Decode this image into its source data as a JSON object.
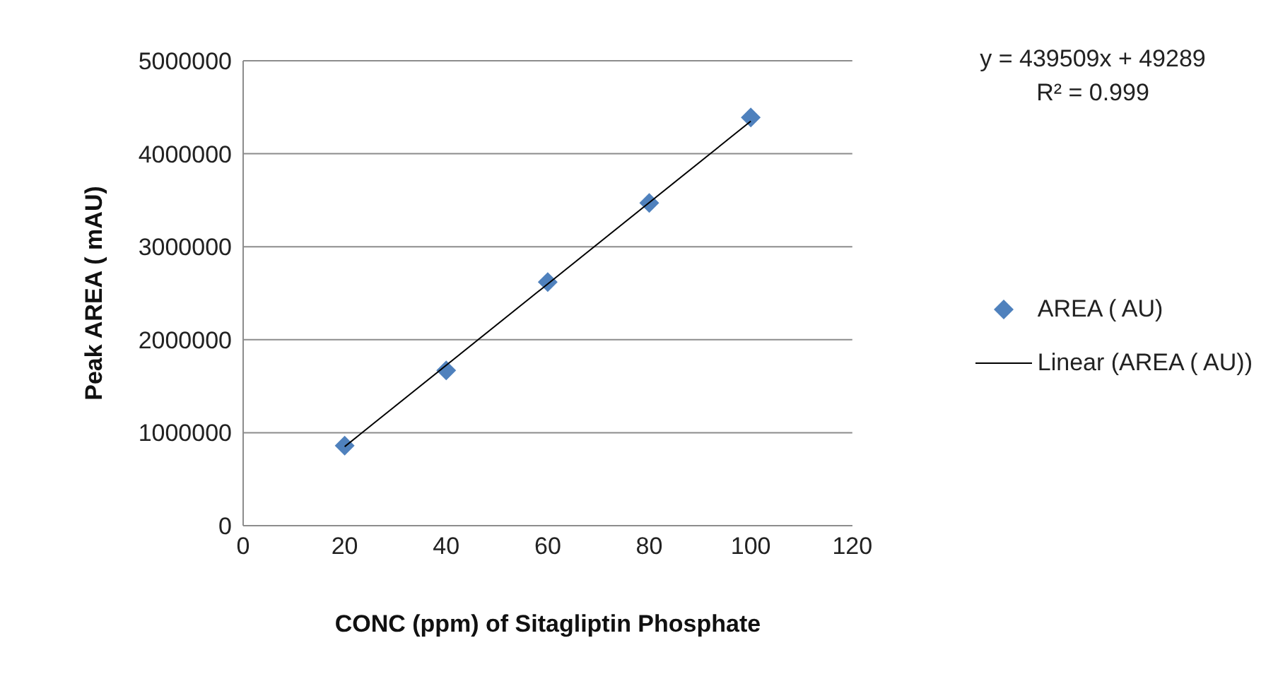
{
  "chart_data": {
    "type": "scatter",
    "xlabel": "CONC (ppm) of Sitagliptin Phosphate",
    "ylabel": "Peak AREA ( mAU)",
    "xlim": [
      0,
      120
    ],
    "xticks": [
      0,
      20,
      40,
      60,
      80,
      100,
      120
    ],
    "ylim": [
      0,
      5000000
    ],
    "yticks": [
      0,
      1000000,
      2000000,
      3000000,
      4000000,
      5000000
    ],
    "grid": "y",
    "legend": "right",
    "marker": "diamond",
    "series": [
      {
        "name": "AREA  ( AU)",
        "type": "scatter",
        "color": "#4f81bd",
        "x": [
          20,
          40,
          60,
          80,
          100
        ],
        "values": [
          860000,
          1670000,
          2620000,
          3470000,
          4390000
        ]
      },
      {
        "name": "Linear (AREA  ( AU))",
        "type": "line",
        "color": "#000000",
        "marker": "none",
        "line_style": "solid",
        "x": [
          20,
          100
        ],
        "values": [
          850000,
          4350000
        ]
      }
    ],
    "annotations": [
      "y = 439509x + 49289",
      "R² = 0.999"
    ]
  }
}
